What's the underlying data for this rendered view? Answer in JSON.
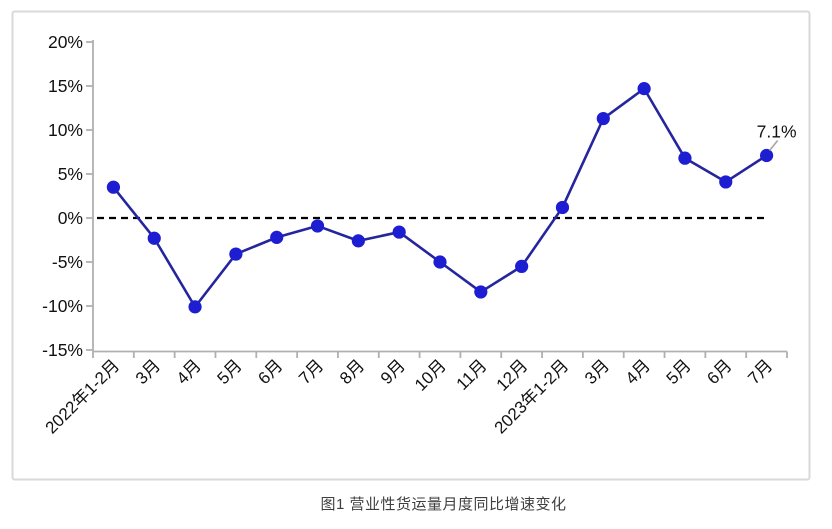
{
  "page": {
    "background": "#ffffff"
  },
  "caption": "图1 营业性货运量月度同比增速变化",
  "chart_data": {
    "type": "line",
    "title": "图1 营业性货运量月度同比增速变化",
    "categories": [
      "2022年1-2月",
      "3月",
      "4月",
      "5月",
      "6月",
      "7月",
      "8月",
      "9月",
      "10月",
      "11月",
      "12月",
      "2023年1-2月",
      "3月",
      "4月",
      "5月",
      "6月",
      "7月"
    ],
    "series": [
      {
        "name": "营业性货运量月度同比增速",
        "values": [
          3.5,
          -2.3,
          -10.1,
          -4.1,
          -2.2,
          -0.9,
          -2.6,
          -1.6,
          -5.0,
          -8.4,
          -5.5,
          1.2,
          11.3,
          14.7,
          6.8,
          4.1,
          7.1
        ]
      }
    ],
    "xlabel": "",
    "ylabel": "",
    "ylim": [
      -15,
      20
    ],
    "y_ticks": {
      "labels": [
        "20%",
        "15%",
        "10%",
        "5%",
        "0%",
        "-5%",
        "-10%",
        "-15%"
      ],
      "values": [
        20,
        15,
        10,
        5,
        0,
        -5,
        -10,
        -15
      ]
    },
    "x_tick_rotation_deg": -45,
    "grid": false,
    "legend_position": "none",
    "zero_line": {
      "value": 0,
      "style": "dashed",
      "color": "#000000"
    },
    "annotation": {
      "text": "7.1%",
      "category_index": 16,
      "value": 7.1
    },
    "colors": {
      "line": "#25259e",
      "marker": "#1d1dd2",
      "axis": "#b0b0b0",
      "frame_border": "#d9d9d9",
      "tick_text": "#111111",
      "annotation_text": "#111111",
      "leader_line": "#a6a6a6"
    }
  }
}
